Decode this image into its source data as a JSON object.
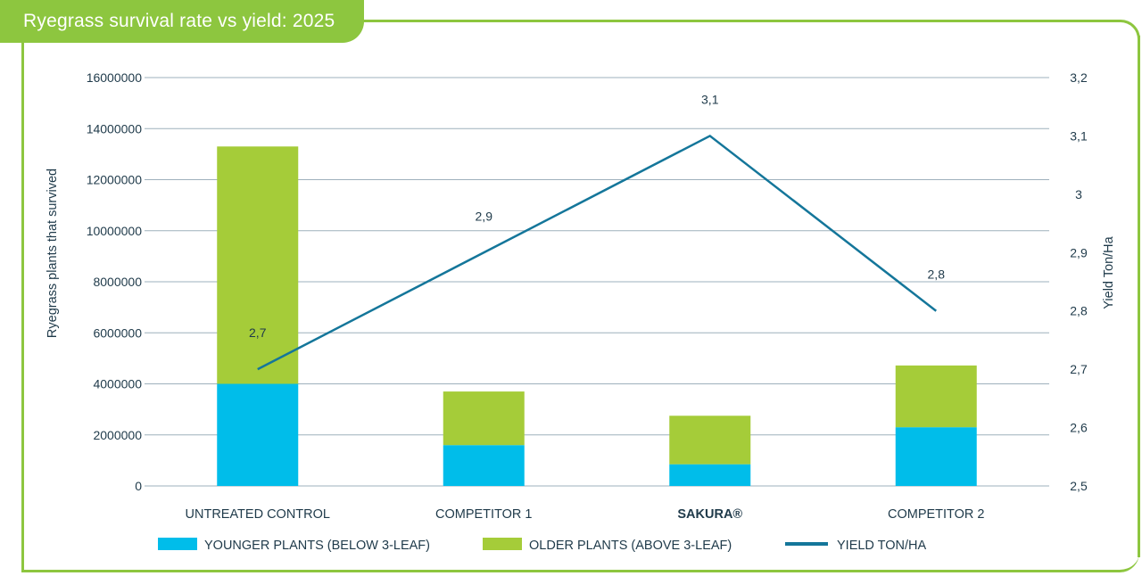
{
  "title": "Ryegrass survival rate vs yield: 2025",
  "chart_data": {
    "type": "bar",
    "stacked": true,
    "title": "Ryegrass survival rate vs yield: 2025",
    "categories": [
      "UNTREATED CONTROL",
      "COMPETITOR 1",
      "SAKURA®",
      "COMPETITOR 2"
    ],
    "bold_categories": [
      "SAKURA®"
    ],
    "series": [
      {
        "name": "YOUNGER PLANTS (BELOW 3-LEAF)",
        "type": "bar",
        "axis": "left",
        "color": "#00bdea",
        "values": [
          4000000,
          1600000,
          850000,
          2300000
        ]
      },
      {
        "name": "OLDER PLANTS (ABOVE 3-LEAF)",
        "type": "bar",
        "axis": "left",
        "color": "#a5cc39",
        "values": [
          9300000,
          2100000,
          1900000,
          2420000
        ]
      },
      {
        "name": "YIELD TON/HA",
        "type": "line",
        "axis": "right",
        "color": "#14769a",
        "values": [
          2.7,
          2.9,
          3.1,
          2.8
        ],
        "labels": [
          "2,7",
          "2,9",
          "3,1",
          "2,8"
        ]
      }
    ],
    "ylabel": "Ryegrass plants that survived",
    "ylim": [
      0,
      16000000
    ],
    "yticks": [
      "0",
      "2000000",
      "4000000",
      "6000000",
      "8000000",
      "10000000",
      "12000000",
      "14000000",
      "16000000"
    ],
    "y2label": "Yield Ton/Ha",
    "y2lim": [
      2.5,
      3.2
    ],
    "y2ticks": [
      "2,5",
      "2,6",
      "2,7",
      "2,8",
      "2,9",
      "3",
      "3,1",
      "3,2"
    ],
    "grid": true,
    "legend_position": "bottom",
    "gridline_color": "#9eb0bc",
    "text_color": "#1f3a4a"
  }
}
